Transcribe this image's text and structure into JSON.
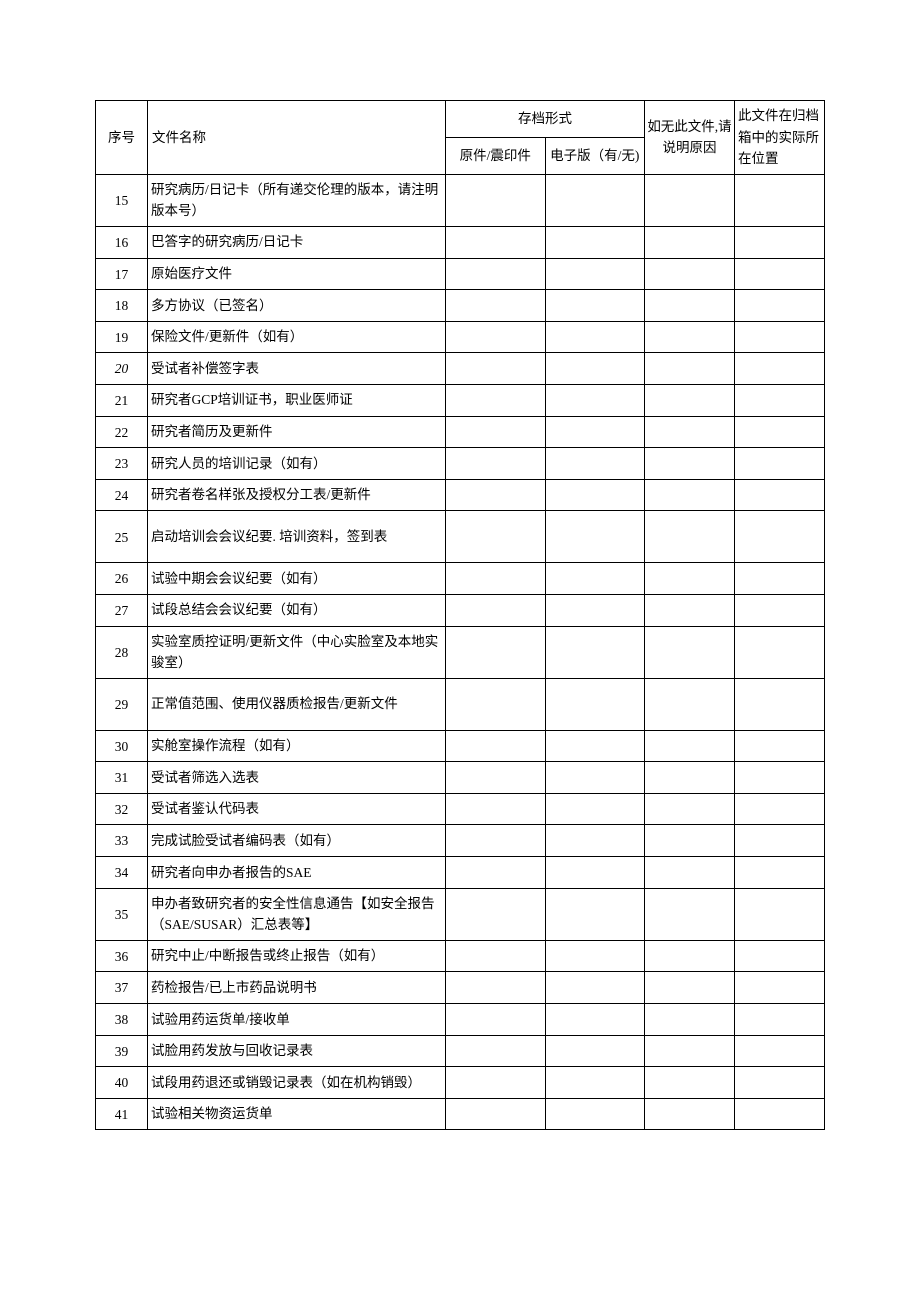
{
  "headers": {
    "seq": "序号",
    "name": "文件名称",
    "archive_group": "存档形式",
    "archive1": "原件/震印件",
    "archive2": "电子版（有/无)",
    "reason": "如无此文件,请说明原因",
    "location": "此文件在归档箱中的实际所在位置"
  },
  "rows": [
    {
      "seq": "15",
      "name": "研究病历/日记卡（所有递交伦理的版本，请注明版本号）",
      "valign": "middle"
    },
    {
      "seq": "16",
      "name": "巴答字的研究病历/日记卡"
    },
    {
      "seq": "17",
      "name": "原始医疗文件"
    },
    {
      "seq": "18",
      "name": "多方协议（已签名）"
    },
    {
      "seq": "19",
      "name": "保险文件/更新件（如有）"
    },
    {
      "seq": "20",
      "name": "受试者补偿签字表",
      "italic": true
    },
    {
      "seq": "21",
      "name": "研究者GCP培训证书，职业医师证"
    },
    {
      "seq": "22",
      "name": "研究者简历及更新件"
    },
    {
      "seq": "23",
      "name": "研究人员的培训记录（如有）"
    },
    {
      "seq": "24",
      "name": "研究者卷名样张及授权分工表/更新件"
    },
    {
      "seq": "25",
      "name": "启动培训会会议纪要. 培训资料，签到表",
      "valign": "middle",
      "tall": true
    },
    {
      "seq": "26",
      "name": "试验中期会会议纪要（如有）"
    },
    {
      "seq": "27",
      "name": "试段总结会会议纪要（如有）"
    },
    {
      "seq": "28",
      "name": "实验室质控证明/更新文件（中心实脸室及本地实骏室）",
      "valign": "middle"
    },
    {
      "seq": "29",
      "name": "正常值范围、使用仪器质检报告/更新文件",
      "valign": "middle",
      "tall": true
    },
    {
      "seq": "30",
      "name": "实舱室操作流程（如有）"
    },
    {
      "seq": "31",
      "name": "受试者筛选入选表"
    },
    {
      "seq": "32",
      "name": "受试者鉴认代码表"
    },
    {
      "seq": "33",
      "name": "完成试脸受试者编码表（如有）"
    },
    {
      "seq": "34",
      "name": "研究者向申办者报告的SAE"
    },
    {
      "seq": "35",
      "name": "申办者致研究者的安全性信息通告【如安全报告（SAE/SUSAR）汇总表等】",
      "valign": "middle"
    },
    {
      "seq": "36",
      "name": "研究中止/中断报告或终止报告（如有）"
    },
    {
      "seq": "37",
      "name": "药检报告/已上市药品说明书"
    },
    {
      "seq": "38",
      "name": "试验用药运货单/接收单"
    },
    {
      "seq": "39",
      "name": "试脸用药发放与回收记录表"
    },
    {
      "seq": "40",
      "name": "试段用药退还或销毁记录表（如在机构销毁）",
      "valign": "middle"
    },
    {
      "seq": "41",
      "name": "试验相关物资运货单"
    }
  ]
}
